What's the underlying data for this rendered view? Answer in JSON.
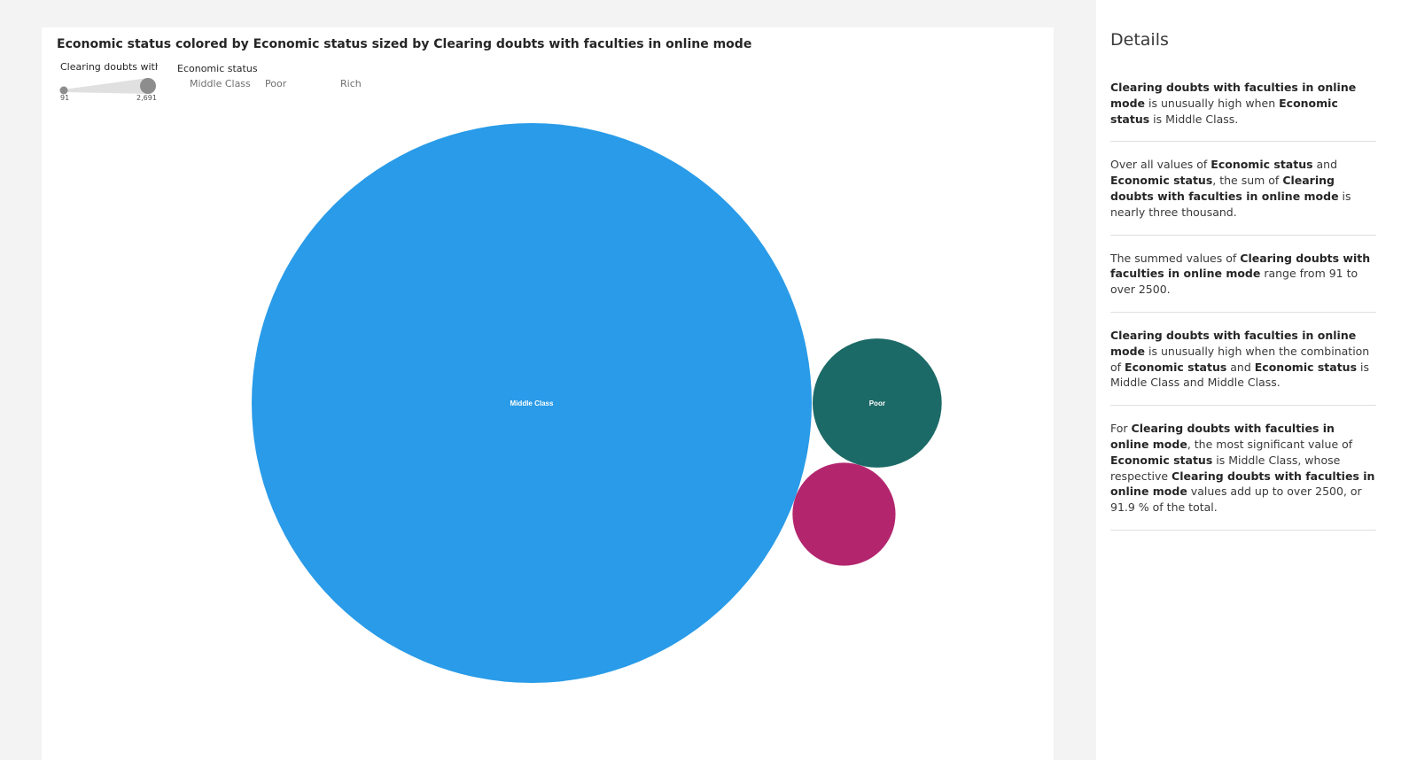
{
  "chart": {
    "title": "Economic status colored by Economic status sized by Clearing doubts with faculties in online mode",
    "size_legend": {
      "title": "Clearing doubts with",
      "min_label": "91",
      "max_label": "2,691"
    },
    "color_legend": {
      "title": "Economic status",
      "items": [
        "Middle Class",
        "Poor",
        "Rich"
      ]
    }
  },
  "chart_data": {
    "type": "bubble",
    "title": "Economic status colored by Economic status sized by Clearing doubts with faculties in online mode",
    "size_measure": "Clearing doubts with faculties in online mode",
    "color_dimension": "Economic status",
    "size_range": [
      91,
      2691
    ],
    "bubbles": [
      {
        "category": "Middle Class",
        "value": 2691,
        "color": "#299be8",
        "label": "Middle Class"
      },
      {
        "category": "Poor",
        "value": 143,
        "color": "#1c6a67",
        "label": "Poor"
      },
      {
        "category": "Rich",
        "value": 91,
        "color": "#b3266e",
        "label": ""
      }
    ]
  },
  "details": {
    "title": "Details",
    "insights": [
      [
        {
          "b": true,
          "t": "Clearing doubts with faculties in online mode"
        },
        {
          "b": false,
          "t": " is unusually high when "
        },
        {
          "b": true,
          "t": "Economic status"
        },
        {
          "b": false,
          "t": " is Middle Class."
        }
      ],
      [
        {
          "b": false,
          "t": "Over all values of "
        },
        {
          "b": true,
          "t": "Economic status"
        },
        {
          "b": false,
          "t": " and "
        },
        {
          "b": true,
          "t": "Economic status"
        },
        {
          "b": false,
          "t": ", the sum of "
        },
        {
          "b": true,
          "t": "Clearing doubts with faculties in online mode"
        },
        {
          "b": false,
          "t": " is nearly three thousand."
        }
      ],
      [
        {
          "b": false,
          "t": "The summed values of "
        },
        {
          "b": true,
          "t": "Clearing doubts with faculties in online mode"
        },
        {
          "b": false,
          "t": " range from 91 to over 2500."
        }
      ],
      [
        {
          "b": true,
          "t": "Clearing doubts with faculties in online mode"
        },
        {
          "b": false,
          "t": " is unusually high when the combination of "
        },
        {
          "b": true,
          "t": "Economic status"
        },
        {
          "b": false,
          "t": " and "
        },
        {
          "b": true,
          "t": "Economic status"
        },
        {
          "b": false,
          "t": " is Middle Class and Middle Class."
        }
      ],
      [
        {
          "b": false,
          "t": "For "
        },
        {
          "b": true,
          "t": "Clearing doubts with faculties in online mode"
        },
        {
          "b": false,
          "t": ", the most significant value of "
        },
        {
          "b": true,
          "t": "Economic status"
        },
        {
          "b": false,
          "t": " is Middle Class, whose respective "
        },
        {
          "b": true,
          "t": "Clearing doubts with faculties in online mode"
        },
        {
          "b": false,
          "t": " values add up to over 2500, or 91.9 % of the total."
        }
      ]
    ]
  }
}
